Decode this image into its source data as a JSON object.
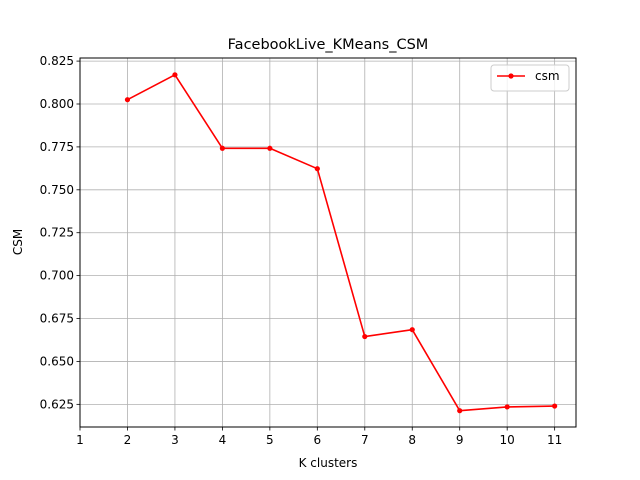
{
  "chart_data": {
    "type": "line",
    "title": "FacebookLive_KMeans_CSM",
    "xlabel": "K clusters",
    "ylabel": "CSM",
    "xlim": [
      1,
      11.45
    ],
    "ylim": [
      0.6118,
      0.8268
    ],
    "xticks": [
      1,
      2,
      3,
      4,
      5,
      6,
      7,
      8,
      9,
      10,
      11
    ],
    "yticks": [
      0.625,
      0.65,
      0.675,
      0.7,
      0.725,
      0.75,
      0.775,
      0.8,
      0.825
    ],
    "ytick_labels": [
      "0.625",
      "0.650",
      "0.675",
      "0.700",
      "0.725",
      "0.750",
      "0.775",
      "0.800",
      "0.825"
    ],
    "grid": true,
    "legend_position": "top-right",
    "series": [
      {
        "name": "csm",
        "color": "#ff0000",
        "marker": "circle",
        "x": [
          2,
          3,
          4,
          5,
          6,
          7,
          8,
          9,
          10,
          11
        ],
        "y": [
          0.8025,
          0.817,
          0.7742,
          0.7742,
          0.7623,
          0.6645,
          0.6685,
          0.6213,
          0.6235,
          0.624
        ]
      }
    ]
  }
}
